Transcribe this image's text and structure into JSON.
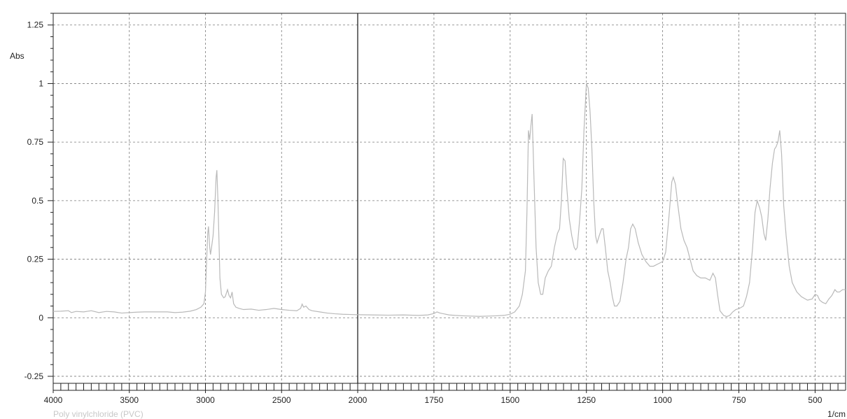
{
  "chart_data": {
    "type": "line",
    "title": "",
    "caption": "Poly vinylchloride (PVC)",
    "xlabel": "1/cm",
    "ylabel": "Abs",
    "xlim": [
      4000,
      400
    ],
    "ylim": [
      -0.28,
      1.3
    ],
    "x_axis_reversed": true,
    "grid": true,
    "x_ticks": [
      4000,
      3500,
      3000,
      2500,
      2000,
      1750,
      1500,
      1250,
      1000,
      750,
      500
    ],
    "y_ticks": [
      {
        "value": 1.25,
        "label": "1.25"
      },
      {
        "value": 1,
        "label": "1"
      },
      {
        "value": 0.75,
        "label": "0.75"
      },
      {
        "value": 0.5,
        "label": "0.5"
      },
      {
        "value": 0.25,
        "label": "0.25"
      },
      {
        "value": 0,
        "label": "0"
      },
      {
        "value": -0.25,
        "label": "-0.25"
      }
    ],
    "segment_break_at": 2000,
    "colors": {
      "line": "#b9b9b9",
      "grid": "#7a7a7a",
      "caption": "#c8c8c8"
    },
    "series": [
      {
        "points": [
          [
            4000,
            0.027
          ],
          [
            3950,
            0.028
          ],
          [
            3900,
            0.03
          ],
          [
            3880,
            0.022
          ],
          [
            3850,
            0.027
          ],
          [
            3800,
            0.025
          ],
          [
            3750,
            0.03
          ],
          [
            3700,
            0.022
          ],
          [
            3650,
            0.027
          ],
          [
            3600,
            0.025
          ],
          [
            3550,
            0.02
          ],
          [
            3500,
            0.022
          ],
          [
            3450,
            0.024
          ],
          [
            3400,
            0.025
          ],
          [
            3350,
            0.025
          ],
          [
            3300,
            0.025
          ],
          [
            3250,
            0.025
          ],
          [
            3200,
            0.022
          ],
          [
            3150,
            0.024
          ],
          [
            3100,
            0.028
          ],
          [
            3060,
            0.035
          ],
          [
            3030,
            0.045
          ],
          [
            3010,
            0.06
          ],
          [
            3000,
            0.11
          ],
          [
            2995,
            0.2
          ],
          [
            2985,
            0.36
          ],
          [
            2980,
            0.39
          ],
          [
            2972,
            0.3
          ],
          [
            2967,
            0.27
          ],
          [
            2960,
            0.3
          ],
          [
            2950,
            0.35
          ],
          [
            2940,
            0.45
          ],
          [
            2930,
            0.6
          ],
          [
            2925,
            0.63
          ],
          [
            2918,
            0.5
          ],
          [
            2910,
            0.3
          ],
          [
            2905,
            0.17
          ],
          [
            2895,
            0.1
          ],
          [
            2880,
            0.085
          ],
          [
            2870,
            0.09
          ],
          [
            2855,
            0.12
          ],
          [
            2845,
            0.095
          ],
          [
            2835,
            0.085
          ],
          [
            2825,
            0.11
          ],
          [
            2815,
            0.06
          ],
          [
            2800,
            0.045
          ],
          [
            2780,
            0.04
          ],
          [
            2750,
            0.035
          ],
          [
            2700,
            0.037
          ],
          [
            2650,
            0.032
          ],
          [
            2600,
            0.035
          ],
          [
            2550,
            0.04
          ],
          [
            2500,
            0.035
          ],
          [
            2450,
            0.032
          ],
          [
            2400,
            0.03
          ],
          [
            2375,
            0.04
          ],
          [
            2365,
            0.058
          ],
          [
            2355,
            0.045
          ],
          [
            2340,
            0.05
          ],
          [
            2320,
            0.035
          ],
          [
            2300,
            0.03
          ],
          [
            2250,
            0.025
          ],
          [
            2200,
            0.02
          ],
          [
            2150,
            0.017
          ],
          [
            2100,
            0.015
          ],
          [
            2050,
            0.014
          ],
          [
            2000,
            0.013
          ],
          [
            1950,
            0.012
          ],
          [
            1900,
            0.011
          ],
          [
            1850,
            0.012
          ],
          [
            1800,
            0.01
          ],
          [
            1770,
            0.012
          ],
          [
            1750,
            0.018
          ],
          [
            1740,
            0.025
          ],
          [
            1730,
            0.02
          ],
          [
            1700,
            0.012
          ],
          [
            1680,
            0.01
          ],
          [
            1650,
            0.008
          ],
          [
            1600,
            0.006
          ],
          [
            1550,
            0.008
          ],
          [
            1520,
            0.01
          ],
          [
            1500,
            0.015
          ],
          [
            1485,
            0.025
          ],
          [
            1470,
            0.05
          ],
          [
            1460,
            0.1
          ],
          [
            1450,
            0.2
          ],
          [
            1445,
            0.45
          ],
          [
            1440,
            0.8
          ],
          [
            1436,
            0.76
          ],
          [
            1432,
            0.82
          ],
          [
            1428,
            0.87
          ],
          [
            1422,
            0.6
          ],
          [
            1415,
            0.3
          ],
          [
            1408,
            0.15
          ],
          [
            1400,
            0.1
          ],
          [
            1393,
            0.1
          ],
          [
            1385,
            0.17
          ],
          [
            1375,
            0.2
          ],
          [
            1365,
            0.22
          ],
          [
            1355,
            0.3
          ],
          [
            1345,
            0.36
          ],
          [
            1338,
            0.38
          ],
          [
            1332,
            0.5
          ],
          [
            1326,
            0.68
          ],
          [
            1320,
            0.67
          ],
          [
            1314,
            0.55
          ],
          [
            1306,
            0.42
          ],
          [
            1298,
            0.35
          ],
          [
            1290,
            0.3
          ],
          [
            1285,
            0.29
          ],
          [
            1280,
            0.3
          ],
          [
            1272,
            0.42
          ],
          [
            1265,
            0.55
          ],
          [
            1258,
            0.8
          ],
          [
            1250,
            1.0
          ],
          [
            1244,
            0.98
          ],
          [
            1238,
            0.88
          ],
          [
            1232,
            0.72
          ],
          [
            1226,
            0.5
          ],
          [
            1220,
            0.35
          ],
          [
            1215,
            0.32
          ],
          [
            1208,
            0.35
          ],
          [
            1200,
            0.38
          ],
          [
            1195,
            0.38
          ],
          [
            1188,
            0.3
          ],
          [
            1180,
            0.2
          ],
          [
            1172,
            0.15
          ],
          [
            1165,
            0.09
          ],
          [
            1158,
            0.05
          ],
          [
            1150,
            0.05
          ],
          [
            1140,
            0.07
          ],
          [
            1130,
            0.15
          ],
          [
            1120,
            0.25
          ],
          [
            1112,
            0.3
          ],
          [
            1105,
            0.38
          ],
          [
            1098,
            0.4
          ],
          [
            1090,
            0.38
          ],
          [
            1080,
            0.32
          ],
          [
            1068,
            0.27
          ],
          [
            1055,
            0.24
          ],
          [
            1042,
            0.22
          ],
          [
            1030,
            0.22
          ],
          [
            1015,
            0.23
          ],
          [
            1000,
            0.24
          ],
          [
            990,
            0.28
          ],
          [
            980,
            0.42
          ],
          [
            970,
            0.58
          ],
          [
            965,
            0.6
          ],
          [
            958,
            0.57
          ],
          [
            950,
            0.48
          ],
          [
            940,
            0.38
          ],
          [
            930,
            0.33
          ],
          [
            920,
            0.3
          ],
          [
            910,
            0.25
          ],
          [
            900,
            0.2
          ],
          [
            888,
            0.18
          ],
          [
            875,
            0.17
          ],
          [
            860,
            0.17
          ],
          [
            845,
            0.16
          ],
          [
            835,
            0.19
          ],
          [
            827,
            0.17
          ],
          [
            820,
            0.1
          ],
          [
            812,
            0.03
          ],
          [
            800,
            0.01
          ],
          [
            790,
            0.005
          ],
          [
            780,
            0.01
          ],
          [
            770,
            0.025
          ],
          [
            760,
            0.035
          ],
          [
            748,
            0.04
          ],
          [
            735,
            0.05
          ],
          [
            725,
            0.09
          ],
          [
            715,
            0.15
          ],
          [
            705,
            0.3
          ],
          [
            697,
            0.45
          ],
          [
            690,
            0.5
          ],
          [
            682,
            0.47
          ],
          [
            675,
            0.43
          ],
          [
            668,
            0.36
          ],
          [
            662,
            0.33
          ],
          [
            655,
            0.42
          ],
          [
            648,
            0.55
          ],
          [
            640,
            0.66
          ],
          [
            633,
            0.72
          ],
          [
            628,
            0.73
          ],
          [
            622,
            0.75
          ],
          [
            616,
            0.8
          ],
          [
            610,
            0.7
          ],
          [
            603,
            0.48
          ],
          [
            595,
            0.35
          ],
          [
            585,
            0.22
          ],
          [
            575,
            0.15
          ],
          [
            560,
            0.11
          ],
          [
            545,
            0.09
          ],
          [
            525,
            0.075
          ],
          [
            510,
            0.08
          ],
          [
            500,
            0.1
          ],
          [
            492,
            0.095
          ],
          [
            485,
            0.075
          ],
          [
            475,
            0.065
          ],
          [
            465,
            0.06
          ],
          [
            455,
            0.08
          ],
          [
            445,
            0.095
          ],
          [
            435,
            0.12
          ],
          [
            428,
            0.11
          ],
          [
            420,
            0.11
          ],
          [
            410,
            0.12
          ],
          [
            400,
            0.12
          ]
        ]
      }
    ]
  }
}
